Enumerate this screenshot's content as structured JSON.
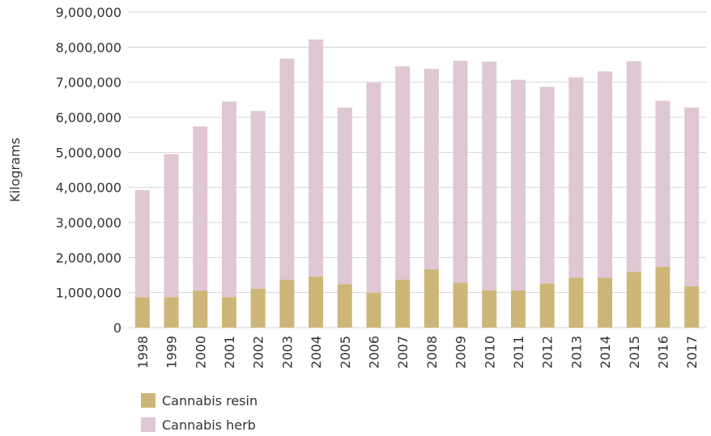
{
  "chart_data": {
    "type": "bar",
    "stacked": true,
    "title": "",
    "xlabel": "",
    "ylabel": "Kilograms",
    "ylim": [
      0,
      9000000
    ],
    "yticks": [
      "0",
      "1,000,000",
      "2,000,000",
      "3,000,000",
      "4,000,000",
      "5,000,000",
      "6,000,000",
      "7,000,000",
      "8,000,000",
      "9,000,000"
    ],
    "grid": "horizontal",
    "legend_position": "bottom-left",
    "categories": [
      "1998",
      "1999",
      "2000",
      "2001",
      "2002",
      "2003",
      "2004",
      "2005",
      "2006",
      "2007",
      "2008",
      "2009",
      "2010",
      "2011",
      "2012",
      "2013",
      "2014",
      "2015",
      "2016",
      "2017"
    ],
    "series": [
      {
        "name": "Cannabis resin",
        "color": "#cdb677",
        "values": [
          870000,
          870000,
          1050000,
          870000,
          1110000,
          1370000,
          1460000,
          1240000,
          990000,
          1370000,
          1660000,
          1280000,
          1060000,
          1060000,
          1260000,
          1420000,
          1420000,
          1590000,
          1730000,
          1180000
        ]
      },
      {
        "name": "Cannabis herb",
        "color": "#dfc7d3",
        "values": [
          3050000,
          4080000,
          4690000,
          5580000,
          5070000,
          6300000,
          6760000,
          5040000,
          6000000,
          6080000,
          5720000,
          6330000,
          6530000,
          6010000,
          5610000,
          5720000,
          5890000,
          6010000,
          4740000,
          5100000
        ]
      }
    ]
  }
}
